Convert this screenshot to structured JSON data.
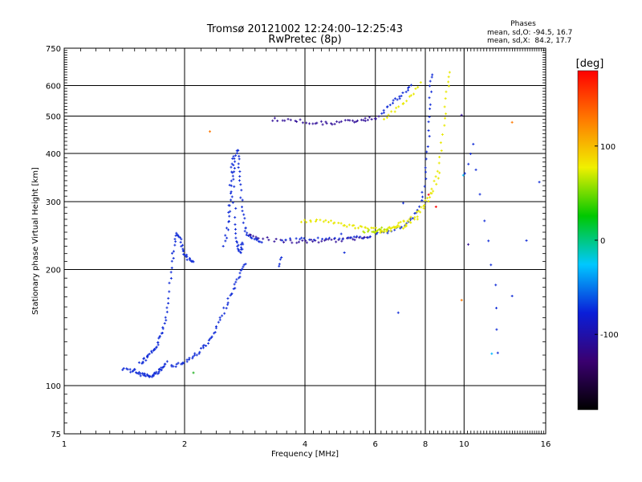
{
  "chart_data": {
    "type": "scatter",
    "title": "Tromsø 20121002 12:24:00–12:25:43",
    "subtitle": "RwPretec (8p)",
    "xlabel": "Frequency [MHz]",
    "ylabel": "Stationary phase Virtual Height [km]",
    "x_scale": "log",
    "y_scale": "log",
    "xlim": [
      1,
      16
    ],
    "ylim": [
      75,
      750
    ],
    "x_ticks": [
      1,
      2,
      4,
      6,
      8,
      10,
      16
    ],
    "y_ticks": [
      75,
      100,
      200,
      300,
      400,
      500,
      600,
      750
    ],
    "grid": true,
    "phase_box": {
      "title": "Phases",
      "line1": "mean, sd,O: -94.5, 16.7",
      "line2": "mean, sd,X:  84.2, 17.7"
    },
    "colorbar": {
      "label": "[deg]",
      "range": [
        -180,
        180
      ],
      "ticks": [
        100,
        0,
        -100
      ],
      "colors": [
        "#000000",
        "#3a0070",
        "#0a1ed8",
        "#00c8ff",
        "#00c800",
        "#f0f000",
        "#ff7a00",
        "#ff0000"
      ]
    },
    "traces": [
      {
        "color": "#1530d8",
        "points": [
          [
            1.4,
            110
          ],
          [
            1.45,
            111
          ],
          [
            1.48,
            108
          ],
          [
            1.5,
            110
          ],
          [
            1.52,
            108
          ],
          [
            1.55,
            107
          ],
          [
            1.58,
            107
          ],
          [
            1.6,
            107
          ],
          [
            1.62,
            106
          ],
          [
            1.64,
            105
          ],
          [
            1.66,
            106
          ],
          [
            1.68,
            107
          ],
          [
            1.7,
            108
          ],
          [
            1.72,
            109
          ],
          [
            1.74,
            110
          ],
          [
            1.76,
            111
          ],
          [
            1.78,
            113
          ],
          [
            1.8,
            115
          ]
        ]
      },
      {
        "color": "#1530d8",
        "points": [
          [
            1.55,
            114
          ],
          [
            1.58,
            116
          ],
          [
            1.6,
            117
          ],
          [
            1.62,
            119
          ],
          [
            1.65,
            121
          ],
          [
            1.68,
            123
          ],
          [
            1.7,
            126
          ],
          [
            1.72,
            129
          ],
          [
            1.74,
            133
          ],
          [
            1.76,
            138
          ],
          [
            1.78,
            145
          ],
          [
            1.8,
            155
          ],
          [
            1.82,
            170
          ],
          [
            1.84,
            190
          ],
          [
            1.86,
            210
          ],
          [
            1.88,
            225
          ],
          [
            1.9,
            240
          ],
          [
            1.92,
            248
          ],
          [
            1.94,
            245
          ],
          [
            1.96,
            235
          ],
          [
            1.98,
            225
          ],
          [
            2.0,
            220
          ],
          [
            2.02,
            215
          ],
          [
            2.05,
            212
          ],
          [
            2.08,
            210
          ],
          [
            2.1,
            212
          ]
        ]
      },
      {
        "color": "#1530d8",
        "points": [
          [
            1.85,
            112
          ],
          [
            1.9,
            113
          ],
          [
            1.95,
            114
          ],
          [
            2.0,
            115
          ],
          [
            2.05,
            117
          ],
          [
            2.1,
            119
          ],
          [
            2.15,
            121
          ],
          [
            2.2,
            124
          ],
          [
            2.25,
            127
          ],
          [
            2.3,
            130
          ],
          [
            2.35,
            134
          ],
          [
            2.4,
            140
          ],
          [
            2.45,
            147
          ],
          [
            2.5,
            155
          ],
          [
            2.55,
            163
          ],
          [
            2.6,
            170
          ],
          [
            2.65,
            177
          ],
          [
            2.7,
            185
          ],
          [
            2.75,
            193
          ],
          [
            2.8,
            200
          ],
          [
            2.85,
            208
          ]
        ]
      },
      {
        "color": "#1530d8",
        "points": [
          [
            2.5,
            230
          ],
          [
            2.55,
            255
          ],
          [
            2.6,
            285
          ],
          [
            2.62,
            310
          ],
          [
            2.64,
            340
          ],
          [
            2.66,
            365
          ],
          [
            2.68,
            390
          ],
          [
            2.7,
            410
          ],
          [
            2.72,
            395
          ],
          [
            2.74,
            370
          ],
          [
            2.76,
            340
          ],
          [
            2.78,
            310
          ],
          [
            2.8,
            285
          ],
          [
            2.82,
            262
          ],
          [
            2.85,
            250
          ],
          [
            2.9,
            245
          ],
          [
            2.95,
            242
          ],
          [
            3.0,
            240
          ],
          [
            3.05,
            238
          ],
          [
            3.1,
            237
          ]
        ]
      },
      {
        "color": "#1530d8",
        "points": [
          [
            2.56,
            240
          ],
          [
            2.58,
            280
          ],
          [
            2.6,
            330
          ],
          [
            2.62,
            370
          ],
          [
            2.64,
            395
          ],
          [
            2.66,
            300
          ],
          [
            2.68,
            260
          ],
          [
            2.7,
            240
          ],
          [
            2.72,
            230
          ],
          [
            2.74,
            225
          ],
          [
            2.76,
            222
          ],
          [
            2.78,
            228
          ],
          [
            2.8,
            236
          ]
        ]
      },
      {
        "color": "#3a1a9e",
        "points": [
          [
            2.9,
            248
          ],
          [
            3.0,
            244
          ],
          [
            3.2,
            240
          ],
          [
            3.4,
            238
          ],
          [
            3.6,
            237
          ],
          [
            3.8,
            236
          ],
          [
            4.0,
            236
          ],
          [
            4.2,
            237
          ],
          [
            4.4,
            237
          ],
          [
            4.6,
            238
          ],
          [
            4.8,
            238
          ],
          [
            5.0,
            239
          ],
          [
            5.2,
            240
          ],
          [
            5.4,
            241
          ],
          [
            5.6,
            243
          ],
          [
            5.8,
            245
          ]
        ]
      },
      {
        "color": "#1530d8",
        "points": [
          [
            3.5,
            240
          ],
          [
            3.8,
            240
          ],
          [
            4.0,
            240
          ],
          [
            4.3,
            240
          ],
          [
            4.6,
            240
          ],
          [
            5.0,
            241
          ],
          [
            5.3,
            242
          ],
          [
            5.6,
            243
          ],
          [
            6.0,
            246
          ],
          [
            6.3,
            249
          ],
          [
            6.6,
            252
          ],
          [
            6.9,
            256
          ],
          [
            7.2,
            262
          ],
          [
            7.4,
            270
          ],
          [
            7.6,
            282
          ],
          [
            7.8,
            300
          ],
          [
            7.95,
            330
          ],
          [
            8.05,
            370
          ],
          [
            8.12,
            420
          ],
          [
            8.18,
            480
          ],
          [
            8.22,
            540
          ],
          [
            8.26,
            600
          ],
          [
            8.3,
            640
          ]
        ]
      },
      {
        "color": "#3a1a9e",
        "points": [
          [
            3.3,
            490
          ],
          [
            3.5,
            490
          ],
          [
            3.7,
            488
          ],
          [
            3.9,
            485
          ],
          [
            4.1,
            482
          ],
          [
            4.3,
            480
          ],
          [
            4.5,
            479
          ],
          [
            4.7,
            480
          ],
          [
            4.9,
            482
          ],
          [
            5.1,
            484
          ],
          [
            5.3,
            486
          ],
          [
            5.5,
            488
          ],
          [
            5.7,
            490
          ],
          [
            5.9,
            493
          ],
          [
            6.1,
            497
          ]
        ]
      },
      {
        "color": "#1530d8",
        "points": [
          [
            6.2,
            510
          ],
          [
            6.4,
            525
          ],
          [
            6.6,
            540
          ],
          [
            6.8,
            555
          ],
          [
            7.0,
            565
          ],
          [
            7.2,
            580
          ],
          [
            7.4,
            605
          ]
        ]
      },
      {
        "color": "#e8e800",
        "points": [
          [
            3.9,
            266
          ],
          [
            4.1,
            268
          ],
          [
            4.3,
            268
          ],
          [
            4.5,
            267
          ],
          [
            4.7,
            265
          ],
          [
            4.9,
            262
          ],
          [
            5.1,
            260
          ],
          [
            5.3,
            258
          ],
          [
            5.5,
            257
          ],
          [
            5.7,
            256
          ],
          [
            5.9,
            255
          ],
          [
            6.1,
            254
          ],
          [
            6.3,
            255
          ],
          [
            6.5,
            256
          ],
          [
            6.7,
            258
          ],
          [
            6.9,
            262
          ],
          [
            7.1,
            266
          ],
          [
            7.4,
            272
          ],
          [
            7.7,
            283
          ],
          [
            8.0,
            300
          ],
          [
            8.3,
            325
          ],
          [
            8.55,
            360
          ],
          [
            8.75,
            410
          ],
          [
            8.9,
            470
          ],
          [
            9.0,
            530
          ],
          [
            9.1,
            600
          ],
          [
            9.15,
            650
          ]
        ]
      },
      {
        "color": "#e8e800",
        "points": [
          [
            6.3,
            495
          ],
          [
            6.6,
            510
          ],
          [
            6.9,
            530
          ],
          [
            7.2,
            550
          ],
          [
            7.5,
            575
          ],
          [
            7.8,
            610
          ]
        ]
      },
      {
        "color": "#e8e800",
        "points": [
          [
            6.0,
            248
          ],
          [
            6.2,
            250
          ],
          [
            6.4,
            252
          ],
          [
            6.6,
            254
          ],
          [
            6.8,
            256
          ],
          [
            7.0,
            258
          ],
          [
            7.2,
            262
          ],
          [
            7.5,
            268
          ],
          [
            7.8,
            280
          ],
          [
            8.1,
            298
          ],
          [
            8.4,
            322
          ],
          [
            8.7,
            355
          ]
        ]
      },
      {
        "color": "#b0e000",
        "points": [
          [
            5.6,
            250
          ],
          [
            5.8,
            251
          ],
          [
            6.0,
            252
          ],
          [
            6.2,
            254
          ],
          [
            6.4,
            256
          ]
        ]
      },
      {
        "color": "#ff0000",
        "points": [
          [
            8.2,
            310
          ],
          [
            8.45,
            290
          ]
        ]
      },
      {
        "color": "#ff7a00",
        "points": [
          [
            2.3,
            455
          ],
          [
            9.8,
            165
          ],
          [
            13.2,
            480
          ]
        ]
      },
      {
        "color": "#20b020",
        "points": [
          [
            2.1,
            108
          ]
        ]
      },
      {
        "color": "#00b8ff",
        "points": [
          [
            9.9,
            350
          ],
          [
            11.8,
            120
          ]
        ]
      },
      {
        "color": "#1530d8",
        "points": [
          [
            3.5,
            215
          ],
          [
            3.45,
            205
          ],
          [
            10.1,
            355
          ],
          [
            10.5,
            420
          ],
          [
            11.2,
            270
          ],
          [
            12.0,
            182
          ],
          [
            12.2,
            122
          ],
          [
            15.5,
            335
          ]
        ]
      },
      {
        "color": "#3a1a9e",
        "points": [
          [
            10.3,
            232
          ],
          [
            9.8,
            505
          ]
        ]
      },
      {
        "color": "#1530d8",
        "points": [
          [
            5.0,
            220
          ],
          [
            6.8,
            155
          ]
        ]
      }
    ]
  }
}
